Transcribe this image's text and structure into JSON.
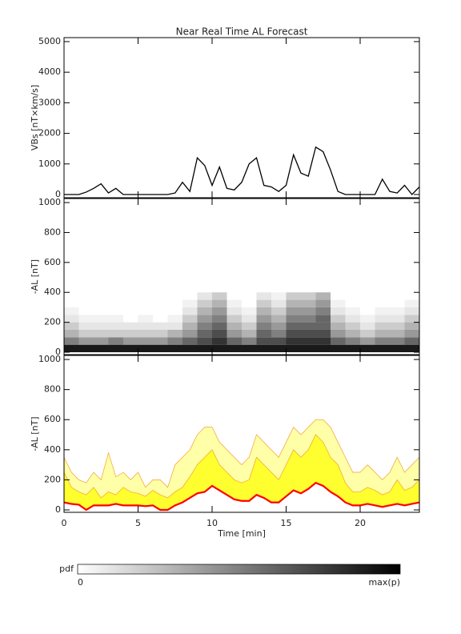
{
  "chart_data": [
    {
      "type": "line",
      "title": "Near Real Time AL Forecast",
      "ylabel": "VBs [nT×km/s]",
      "x": [
        0,
        0.5,
        1,
        1.5,
        2,
        2.5,
        3,
        3.5,
        4,
        4.5,
        5,
        5.5,
        6,
        6.5,
        7,
        7.5,
        8,
        8.5,
        9,
        9.5,
        10,
        10.5,
        11,
        11.5,
        12,
        12.5,
        13,
        13.5,
        14,
        14.5,
        15,
        15.5,
        16,
        16.5,
        17,
        17.5,
        18,
        18.5,
        19,
        19.5,
        20,
        20.5,
        21,
        21.5,
        22,
        22.5,
        23,
        23.5,
        24
      ],
      "values": [
        0,
        0,
        0,
        80,
        200,
        350,
        50,
        200,
        0,
        0,
        0,
        0,
        0,
        0,
        0,
        50,
        400,
        100,
        1200,
        950,
        300,
        900,
        200,
        150,
        400,
        1000,
        1200,
        300,
        250,
        100,
        300,
        1300,
        700,
        600,
        1550,
        1400,
        800,
        100,
        0,
        0,
        0,
        0,
        0,
        500,
        100,
        50,
        300,
        0,
        250
      ],
      "color": "#000000",
      "xlim": [
        0,
        24
      ],
      "xticks": [
        0,
        5,
        10,
        15,
        20
      ],
      "ylim": [
        -105,
        5130
      ],
      "yticks": [
        0,
        1000,
        2000,
        3000,
        4000,
        5000
      ]
    },
    {
      "type": "heatmap",
      "ylabel": "-AL [nT]",
      "x_bins": [
        0,
        1,
        2,
        3,
        4,
        5,
        6,
        7,
        8,
        9,
        10,
        11,
        12,
        13,
        14,
        15,
        16,
        17,
        18,
        19,
        20,
        21,
        22,
        23,
        24
      ],
      "al_bins": [
        0,
        50,
        100,
        150,
        200,
        250,
        300,
        350,
        400
      ],
      "pdf": [
        [
          0.9,
          0.5,
          0.3,
          0.2,
          0.1,
          0.05,
          0,
          0
        ],
        [
          0.9,
          0.4,
          0.2,
          0.1,
          0.05,
          0,
          0,
          0
        ],
        [
          0.9,
          0.4,
          0.2,
          0.1,
          0.05,
          0,
          0,
          0
        ],
        [
          0.9,
          0.5,
          0.2,
          0.1,
          0.05,
          0,
          0,
          0
        ],
        [
          0.9,
          0.4,
          0.2,
          0.1,
          0,
          0,
          0,
          0
        ],
        [
          0.9,
          0.4,
          0.2,
          0.1,
          0.05,
          0,
          0,
          0
        ],
        [
          0.9,
          0.4,
          0.2,
          0.1,
          0,
          0,
          0,
          0
        ],
        [
          0.9,
          0.5,
          0.3,
          0.1,
          0.05,
          0,
          0,
          0
        ],
        [
          0.9,
          0.6,
          0.4,
          0.3,
          0.2,
          0.1,
          0.05,
          0
        ],
        [
          0.9,
          0.7,
          0.6,
          0.5,
          0.4,
          0.3,
          0.2,
          0.1
        ],
        [
          0.9,
          0.8,
          0.7,
          0.6,
          0.5,
          0.4,
          0.3,
          0.2
        ],
        [
          0.9,
          0.6,
          0.4,
          0.3,
          0.2,
          0.1,
          0.05,
          0
        ],
        [
          0.9,
          0.5,
          0.3,
          0.2,
          0.1,
          0.05,
          0,
          0
        ],
        [
          0.9,
          0.7,
          0.6,
          0.5,
          0.4,
          0.3,
          0.2,
          0.1
        ],
        [
          0.9,
          0.7,
          0.5,
          0.4,
          0.3,
          0.2,
          0.1,
          0.05
        ],
        [
          0.9,
          0.8,
          0.7,
          0.6,
          0.5,
          0.4,
          0.3,
          0.2
        ],
        [
          0.9,
          0.8,
          0.7,
          0.6,
          0.5,
          0.4,
          0.3,
          0.2
        ],
        [
          0.9,
          0.8,
          0.7,
          0.6,
          0.6,
          0.5,
          0.4,
          0.3
        ],
        [
          0.9,
          0.6,
          0.4,
          0.3,
          0.2,
          0.1,
          0.05,
          0
        ],
        [
          0.9,
          0.5,
          0.3,
          0.2,
          0.1,
          0.05,
          0,
          0
        ],
        [
          0.9,
          0.4,
          0.2,
          0.1,
          0.05,
          0,
          0,
          0
        ],
        [
          0.9,
          0.5,
          0.3,
          0.2,
          0.1,
          0.05,
          0,
          0
        ],
        [
          0.9,
          0.5,
          0.3,
          0.2,
          0.1,
          0.05,
          0,
          0
        ],
        [
          0.9,
          0.6,
          0.4,
          0.3,
          0.2,
          0.1,
          0.05,
          0
        ]
      ],
      "xlim": [
        0,
        24
      ],
      "xticks": [
        0,
        5,
        10,
        15,
        20
      ],
      "ylim": [
        -16,
        1027
      ],
      "yticks": [
        0,
        200,
        400,
        600,
        800,
        1000
      ],
      "colorbar_label": "pdf",
      "colorbar_ticks": [
        0,
        {
          "value": 1,
          "label": "max(p)"
        }
      ]
    },
    {
      "type": "area",
      "ylabel": "-AL [nT]",
      "xlabel": "Time [min]",
      "x": [
        0,
        0.5,
        1,
        1.5,
        2,
        2.5,
        3,
        3.5,
        4,
        4.5,
        5,
        5.5,
        6,
        6.5,
        7,
        7.5,
        8,
        8.5,
        9,
        9.5,
        10,
        10.5,
        11,
        11.5,
        12,
        12.5,
        13,
        13.5,
        14,
        14.5,
        15,
        15.5,
        16,
        16.5,
        17,
        17.5,
        18,
        18.5,
        19,
        19.5,
        20,
        20.5,
        21,
        21.5,
        22,
        22.5,
        23,
        23.5,
        24
      ],
      "median": {
        "color": "#ff0000",
        "values": [
          50,
          40,
          35,
          0,
          30,
          30,
          30,
          40,
          30,
          30,
          30,
          25,
          30,
          0,
          0,
          30,
          50,
          80,
          110,
          120,
          160,
          130,
          100,
          70,
          60,
          60,
          100,
          80,
          50,
          50,
          90,
          130,
          110,
          140,
          180,
          160,
          120,
          90,
          50,
          30,
          30,
          40,
          30,
          20,
          30,
          40,
          30,
          40,
          50
        ]
      },
      "series": [
        {
          "color": "#ffffa8",
          "values": [
            350,
            250,
            200,
            180,
            250,
            200,
            380,
            220,
            250,
            200,
            250,
            150,
            200,
            200,
            150,
            300,
            350,
            400,
            500,
            550,
            550,
            450,
            400,
            350,
            300,
            350,
            500,
            450,
            400,
            350,
            450,
            550,
            500,
            550,
            600,
            600,
            550,
            450,
            350,
            250,
            250,
            300,
            250,
            200,
            250,
            350,
            250,
            300,
            350
          ]
        },
        {
          "color": "#ffff30",
          "values": [
            250,
            150,
            120,
            100,
            150,
            80,
            120,
            100,
            150,
            120,
            110,
            90,
            130,
            100,
            80,
            120,
            150,
            220,
            300,
            350,
            400,
            300,
            250,
            200,
            180,
            200,
            350,
            300,
            250,
            200,
            300,
            400,
            350,
            400,
            500,
            450,
            350,
            300,
            180,
            120,
            120,
            150,
            130,
            100,
            120,
            200,
            130,
            150,
            200
          ]
        }
      ],
      "xlim": [
        0,
        24
      ],
      "xticks": [
        0,
        5,
        10,
        15,
        20
      ],
      "ylim": [
        -16,
        1027
      ],
      "yticks": [
        0,
        200,
        400,
        600,
        800,
        1000
      ]
    }
  ]
}
